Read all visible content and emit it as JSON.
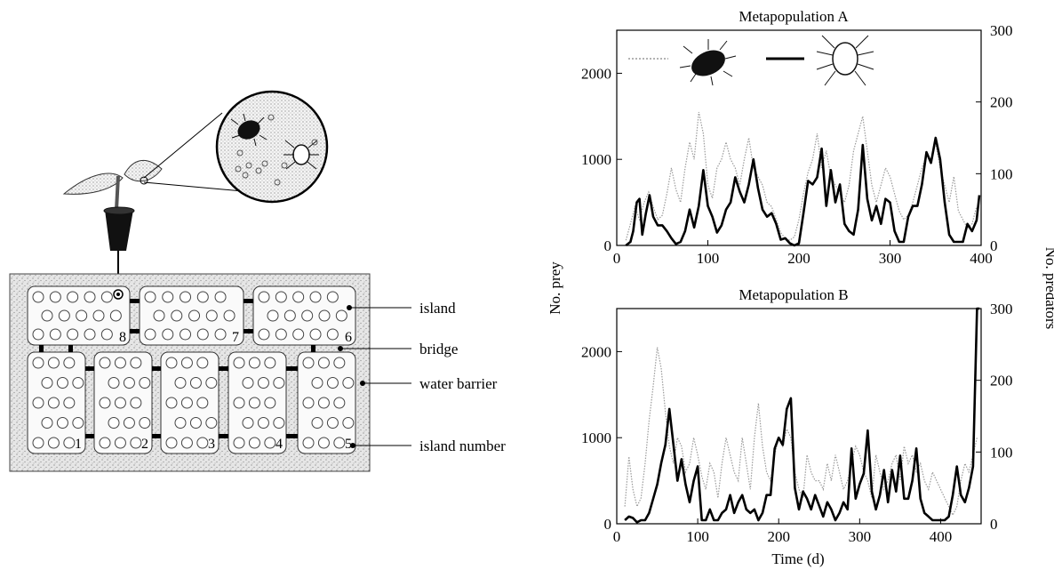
{
  "diagram": {
    "labels": {
      "island": "island",
      "bridge": "bridge",
      "water_barrier": "water barrier",
      "island_number": "island number"
    },
    "island_numbers": [
      "1",
      "2",
      "3",
      "4",
      "5",
      "6",
      "7",
      "8"
    ],
    "icons": [
      "potted-plant-icon",
      "prey-mite-icon",
      "predator-mite-icon",
      "magnifier-icon"
    ]
  },
  "colors": {
    "prey": "#9a9a9a",
    "predators": "#000000",
    "water_barrier": "#e2e2e2"
  },
  "axes": {
    "left_label": "No. prey",
    "right_label": "No. predators",
    "x_label": "Time (d)"
  },
  "chart_data": [
    {
      "type": "line",
      "title": "Metapopulation A",
      "xlabel": "",
      "ylabel": "No. prey",
      "y2label": "No. predators",
      "xlim": [
        0,
        400
      ],
      "ylim": [
        0,
        2500
      ],
      "y2lim": [
        0,
        300
      ],
      "x_ticks": [
        0,
        100,
        200,
        300,
        400
      ],
      "y_ticks": [
        0,
        1000,
        2000
      ],
      "y2_ticks": [
        0,
        100,
        200,
        300
      ],
      "legend": {
        "placement": "top",
        "entries": [
          "prey",
          "predators"
        ]
      },
      "series": [
        {
          "key": "prey",
          "axis": "left",
          "style": "dotted",
          "x": [
            10,
            15,
            20,
            25,
            30,
            35,
            40,
            45,
            50,
            55,
            60,
            65,
            70,
            75,
            80,
            85,
            90,
            95,
            100,
            105,
            110,
            115,
            120,
            125,
            130,
            135,
            140,
            145,
            150,
            155,
            160,
            165,
            170,
            175,
            180,
            185,
            190,
            195,
            200,
            205,
            210,
            215,
            220,
            225,
            230,
            235,
            240,
            245,
            250,
            255,
            260,
            265,
            270,
            275,
            280,
            285,
            290,
            295,
            300,
            305,
            310,
            315,
            320,
            325,
            330,
            335,
            340,
            345,
            350,
            355,
            360,
            365,
            370,
            375,
            380,
            385,
            390,
            395
          ],
          "y": [
            60,
            250,
            450,
            300,
            500,
            620,
            450,
            300,
            350,
            600,
            900,
            650,
            500,
            900,
            1200,
            1000,
            1550,
            1300,
            700,
            550,
            900,
            1000,
            1200,
            1000,
            900,
            700,
            1000,
            1250,
            900,
            800,
            700,
            500,
            450,
            300,
            150,
            80,
            60,
            100,
            300,
            600,
            850,
            1000,
            1300,
            900,
            1100,
            800,
            700,
            600,
            500,
            700,
            1100,
            1300,
            1500,
            1100,
            700,
            500,
            700,
            900,
            800,
            600,
            400,
            300,
            350,
            500,
            700,
            900,
            1050,
            1000,
            1200,
            900,
            700,
            500,
            800,
            400,
            300,
            200,
            250,
            450
          ]
        },
        {
          "key": "predators",
          "axis": "right",
          "style": "solid",
          "x": [
            10,
            15,
            18,
            22,
            25,
            28,
            32,
            36,
            40,
            45,
            50,
            55,
            60,
            65,
            70,
            75,
            80,
            85,
            90,
            95,
            100,
            105,
            110,
            115,
            120,
            125,
            130,
            135,
            140,
            145,
            150,
            155,
            160,
            165,
            170,
            175,
            180,
            185,
            190,
            195,
            200,
            205,
            210,
            215,
            220,
            225,
            230,
            235,
            240,
            245,
            250,
            255,
            260,
            265,
            270,
            275,
            280,
            285,
            290,
            295,
            300,
            305,
            310,
            315,
            320,
            325,
            330,
            335,
            340,
            345,
            350,
            355,
            360,
            365,
            370,
            375,
            380,
            385,
            390,
            395,
            398
          ],
          "y": [
            0,
            5,
            20,
            60,
            65,
            15,
            45,
            70,
            40,
            28,
            28,
            20,
            10,
            2,
            5,
            20,
            50,
            25,
            55,
            105,
            55,
            40,
            18,
            28,
            50,
            60,
            95,
            75,
            60,
            85,
            120,
            80,
            50,
            40,
            45,
            30,
            8,
            10,
            3,
            0,
            3,
            45,
            90,
            85,
            95,
            135,
            55,
            105,
            60,
            85,
            30,
            20,
            15,
            50,
            140,
            65,
            35,
            55,
            30,
            65,
            60,
            20,
            5,
            5,
            40,
            55,
            55,
            85,
            130,
            115,
            150,
            120,
            60,
            15,
            5,
            5,
            5,
            30,
            20,
            35,
            70
          ]
        }
      ]
    },
    {
      "type": "line",
      "title": "Metapopulation B",
      "xlabel": "Time (d)",
      "ylabel": "No. prey",
      "y2label": "No. predators",
      "xlim": [
        0,
        450
      ],
      "ylim": [
        0,
        2500
      ],
      "y2lim": [
        0,
        300
      ],
      "x_ticks": [
        0,
        100,
        200,
        300,
        400
      ],
      "y_ticks": [
        0,
        1000,
        2000
      ],
      "y2_ticks": [
        0,
        100,
        200,
        300
      ],
      "series": [
        {
          "key": "prey",
          "axis": "left",
          "style": "dotted",
          "x": [
            10,
            15,
            20,
            25,
            30,
            35,
            40,
            45,
            50,
            55,
            60,
            65,
            70,
            75,
            80,
            85,
            90,
            95,
            100,
            105,
            110,
            115,
            120,
            125,
            130,
            135,
            140,
            145,
            150,
            155,
            160,
            165,
            170,
            175,
            180,
            185,
            190,
            195,
            200,
            205,
            210,
            215,
            220,
            225,
            230,
            235,
            240,
            245,
            250,
            255,
            260,
            265,
            270,
            275,
            280,
            285,
            290,
            295,
            300,
            305,
            310,
            315,
            320,
            325,
            330,
            335,
            340,
            345,
            350,
            355,
            360,
            365,
            370,
            375,
            380,
            385,
            390,
            395,
            400,
            405,
            410,
            415,
            420,
            425,
            430,
            435,
            440,
            445
          ],
          "y": [
            200,
            780,
            400,
            200,
            300,
            700,
            1200,
            1600,
            2050,
            1800,
            1300,
            900,
            700,
            1000,
            900,
            600,
            700,
            1000,
            800,
            550,
            400,
            700,
            600,
            300,
            700,
            1000,
            800,
            600,
            500,
            1000,
            700,
            400,
            1000,
            1400,
            900,
            600,
            500,
            800,
            1000,
            900,
            1100,
            1000,
            600,
            400,
            300,
            800,
            600,
            500,
            500,
            400,
            700,
            500,
            800,
            600,
            400,
            500,
            700,
            900,
            800,
            600,
            500,
            300,
            800,
            600,
            400,
            500,
            700,
            800,
            500,
            900,
            700,
            800,
            600,
            700,
            500,
            400,
            600,
            500,
            400,
            300,
            200,
            100,
            200,
            500,
            700,
            600,
            800,
            1000
          ]
        },
        {
          "key": "predators",
          "axis": "right",
          "style": "solid",
          "x": [
            10,
            15,
            20,
            25,
            30,
            35,
            40,
            45,
            50,
            55,
            60,
            65,
            70,
            75,
            80,
            85,
            90,
            95,
            100,
            105,
            110,
            115,
            120,
            125,
            130,
            135,
            140,
            145,
            150,
            155,
            160,
            165,
            170,
            175,
            180,
            185,
            190,
            195,
            200,
            205,
            210,
            215,
            220,
            225,
            230,
            235,
            240,
            245,
            250,
            255,
            260,
            265,
            270,
            275,
            280,
            285,
            290,
            295,
            300,
            305,
            310,
            315,
            320,
            325,
            330,
            335,
            340,
            345,
            350,
            355,
            360,
            365,
            370,
            375,
            380,
            385,
            390,
            395,
            400,
            405,
            410,
            415,
            420,
            425,
            430,
            435,
            440,
            445,
            448
          ],
          "y": [
            5,
            10,
            8,
            2,
            5,
            5,
            15,
            35,
            55,
            85,
            110,
            160,
            110,
            60,
            90,
            55,
            30,
            60,
            80,
            5,
            5,
            20,
            5,
            5,
            15,
            20,
            40,
            15,
            30,
            40,
            20,
            15,
            20,
            5,
            15,
            40,
            40,
            105,
            120,
            110,
            160,
            175,
            50,
            20,
            45,
            35,
            20,
            40,
            25,
            10,
            30,
            20,
            5,
            15,
            30,
            20,
            105,
            35,
            55,
            70,
            130,
            45,
            20,
            40,
            75,
            30,
            75,
            45,
            95,
            35,
            35,
            60,
            105,
            35,
            15,
            10,
            5,
            5,
            5,
            5,
            10,
            40,
            80,
            40,
            30,
            50,
            80,
            300,
            300
          ]
        }
      ]
    }
  ]
}
